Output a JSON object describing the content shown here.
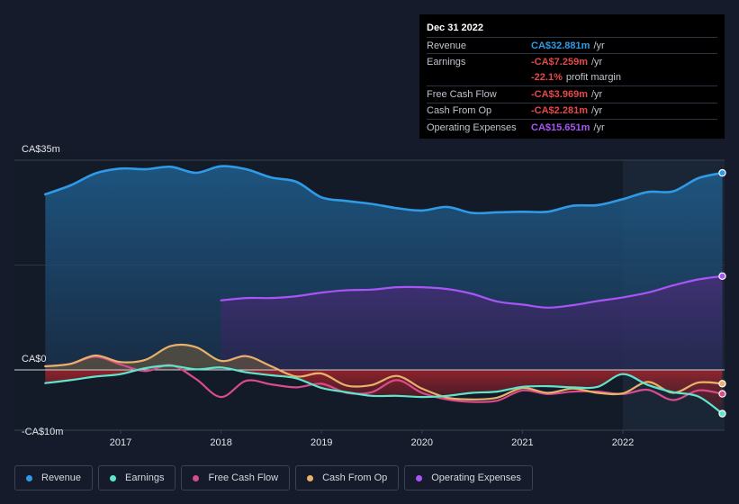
{
  "chart_data": {
    "type": "area",
    "currency": "CA$",
    "y_unit": "millions",
    "ylim": [
      -10,
      35
    ],
    "y_ticks": [
      {
        "value": 35,
        "label": "CA$35m"
      },
      {
        "value": 0,
        "label": "CA$0"
      },
      {
        "value": -10,
        "label": "-CA$10m"
      }
    ],
    "x_ticks": [
      {
        "value": 2017,
        "label": "2017"
      },
      {
        "value": 2018,
        "label": "2018"
      },
      {
        "value": 2019,
        "label": "2019"
      },
      {
        "value": 2020,
        "label": "2020"
      },
      {
        "value": 2021,
        "label": "2021"
      },
      {
        "value": 2022,
        "label": "2022"
      }
    ],
    "xlim": [
      2015.7,
      2022.99
    ],
    "highlight_from": 2022.0,
    "series": [
      {
        "name": "Revenue",
        "color": "#2f9be6",
        "points": [
          [
            2016.25,
            29.3
          ],
          [
            2016.5,
            30.8
          ],
          [
            2016.75,
            32.8
          ],
          [
            2017.0,
            33.6
          ],
          [
            2017.25,
            33.5
          ],
          [
            2017.5,
            33.9
          ],
          [
            2017.75,
            32.9
          ],
          [
            2018.0,
            34.0
          ],
          [
            2018.25,
            33.5
          ],
          [
            2018.5,
            32.1
          ],
          [
            2018.75,
            31.4
          ],
          [
            2019.0,
            28.8
          ],
          [
            2019.25,
            28.2
          ],
          [
            2019.5,
            27.7
          ],
          [
            2019.75,
            27.0
          ],
          [
            2020.0,
            26.6
          ],
          [
            2020.25,
            27.2
          ],
          [
            2020.5,
            26.2
          ],
          [
            2020.75,
            26.3
          ],
          [
            2021.0,
            26.4
          ],
          [
            2021.25,
            26.4
          ],
          [
            2021.5,
            27.4
          ],
          [
            2021.75,
            27.5
          ],
          [
            2022.0,
            28.5
          ],
          [
            2022.25,
            29.7
          ],
          [
            2022.5,
            29.8
          ],
          [
            2022.75,
            32.0
          ],
          [
            2022.99,
            32.881
          ]
        ]
      },
      {
        "name": "Earnings",
        "color": "#5ee6cc",
        "points": [
          [
            2016.25,
            -2.2
          ],
          [
            2016.5,
            -1.7
          ],
          [
            2016.75,
            -1.1
          ],
          [
            2017.0,
            -0.7
          ],
          [
            2017.25,
            0.3
          ],
          [
            2017.5,
            0.7
          ],
          [
            2017.75,
            0.1
          ],
          [
            2018.0,
            0.4
          ],
          [
            2018.25,
            -0.4
          ],
          [
            2018.5,
            -0.9
          ],
          [
            2018.75,
            -1.4
          ],
          [
            2019.0,
            -3.0
          ],
          [
            2019.25,
            -3.7
          ],
          [
            2019.5,
            -4.3
          ],
          [
            2019.75,
            -4.3
          ],
          [
            2020.0,
            -4.5
          ],
          [
            2020.25,
            -4.3
          ],
          [
            2020.5,
            -3.8
          ],
          [
            2020.75,
            -3.6
          ],
          [
            2021.0,
            -2.8
          ],
          [
            2021.25,
            -2.7
          ],
          [
            2021.5,
            -2.9
          ],
          [
            2021.75,
            -2.8
          ],
          [
            2022.0,
            -0.7
          ],
          [
            2022.25,
            -2.5
          ],
          [
            2022.5,
            -3.7
          ],
          [
            2022.75,
            -4.4
          ],
          [
            2022.99,
            -7.259
          ]
        ]
      },
      {
        "name": "Free Cash Flow",
        "color": "#d94b8a",
        "points": [
          [
            2016.25,
            0.6
          ],
          [
            2016.5,
            1.0
          ],
          [
            2016.75,
            2.2
          ],
          [
            2017.0,
            0.9
          ],
          [
            2017.25,
            -0.2
          ],
          [
            2017.5,
            0.8
          ],
          [
            2017.75,
            -1.5
          ],
          [
            2018.0,
            -4.5
          ],
          [
            2018.25,
            -1.8
          ],
          [
            2018.5,
            -2.4
          ],
          [
            2018.75,
            -2.9
          ],
          [
            2019.0,
            -2.3
          ],
          [
            2019.25,
            -3.8
          ],
          [
            2019.5,
            -3.7
          ],
          [
            2019.75,
            -1.7
          ],
          [
            2020.0,
            -3.8
          ],
          [
            2020.25,
            -4.9
          ],
          [
            2020.5,
            -5.3
          ],
          [
            2020.75,
            -5.1
          ],
          [
            2021.0,
            -3.4
          ],
          [
            2021.25,
            -4.0
          ],
          [
            2021.5,
            -3.6
          ],
          [
            2021.75,
            -3.6
          ],
          [
            2022.0,
            -4.0
          ],
          [
            2022.25,
            -3.3
          ],
          [
            2022.5,
            -5.0
          ],
          [
            2022.75,
            -3.4
          ],
          [
            2022.99,
            -3.969
          ]
        ]
      },
      {
        "name": "Cash From Op",
        "color": "#e9b26a",
        "points": [
          [
            2016.25,
            0.6
          ],
          [
            2016.5,
            1.0
          ],
          [
            2016.75,
            2.4
          ],
          [
            2017.0,
            1.3
          ],
          [
            2017.25,
            1.7
          ],
          [
            2017.5,
            4.0
          ],
          [
            2017.75,
            3.8
          ],
          [
            2018.0,
            1.5
          ],
          [
            2018.25,
            2.3
          ],
          [
            2018.5,
            0.6
          ],
          [
            2018.75,
            -1.1
          ],
          [
            2019.0,
            -0.6
          ],
          [
            2019.25,
            -2.6
          ],
          [
            2019.5,
            -2.5
          ],
          [
            2019.75,
            -1.0
          ],
          [
            2020.0,
            -3.1
          ],
          [
            2020.25,
            -4.6
          ],
          [
            2020.5,
            -4.9
          ],
          [
            2020.75,
            -4.6
          ],
          [
            2021.0,
            -3.0
          ],
          [
            2021.25,
            -3.8
          ],
          [
            2021.5,
            -3.1
          ],
          [
            2021.75,
            -3.8
          ],
          [
            2022.0,
            -3.9
          ],
          [
            2022.25,
            -2.0
          ],
          [
            2022.5,
            -3.8
          ],
          [
            2022.75,
            -2.1
          ],
          [
            2022.99,
            -2.281
          ]
        ]
      },
      {
        "name": "Operating Expenses",
        "color": "#a855f7",
        "points": [
          [
            2018.0,
            11.6
          ],
          [
            2018.25,
            12.0
          ],
          [
            2018.5,
            12.0
          ],
          [
            2018.75,
            12.3
          ],
          [
            2019.0,
            12.9
          ],
          [
            2019.25,
            13.3
          ],
          [
            2019.5,
            13.4
          ],
          [
            2019.75,
            13.8
          ],
          [
            2020.0,
            13.8
          ],
          [
            2020.25,
            13.5
          ],
          [
            2020.5,
            12.7
          ],
          [
            2020.75,
            11.4
          ],
          [
            2021.0,
            10.9
          ],
          [
            2021.25,
            10.4
          ],
          [
            2021.5,
            10.8
          ],
          [
            2021.75,
            11.5
          ],
          [
            2022.0,
            12.1
          ],
          [
            2022.25,
            12.9
          ],
          [
            2022.5,
            14.1
          ],
          [
            2022.75,
            15.1
          ],
          [
            2022.99,
            15.651
          ]
        ]
      }
    ]
  },
  "tooltip": {
    "date": "Dec 31 2022",
    "rows": [
      {
        "label": "Revenue",
        "value": "CA$32.881m",
        "unit": "/yr",
        "color": "#2f9be6"
      },
      {
        "label": "Earnings",
        "value": "-CA$7.259m",
        "unit": "/yr",
        "color": "#e54848"
      },
      {
        "label": "",
        "value": "-22.1%",
        "unit": "profit margin",
        "color": "#e54848",
        "sub": true
      },
      {
        "label": "Free Cash Flow",
        "value": "-CA$3.969m",
        "unit": "/yr",
        "color": "#e54848"
      },
      {
        "label": "Cash From Op",
        "value": "-CA$2.281m",
        "unit": "/yr",
        "color": "#e54848"
      },
      {
        "label": "Operating Expenses",
        "value": "CA$15.651m",
        "unit": "/yr",
        "color": "#a855f7"
      }
    ]
  },
  "legend": [
    {
      "label": "Revenue",
      "color": "#2f9be6"
    },
    {
      "label": "Earnings",
      "color": "#5ee6cc"
    },
    {
      "label": "Free Cash Flow",
      "color": "#d94b8a"
    },
    {
      "label": "Cash From Op",
      "color": "#e9b26a"
    },
    {
      "label": "Operating Expenses",
      "color": "#a855f7"
    }
  ]
}
